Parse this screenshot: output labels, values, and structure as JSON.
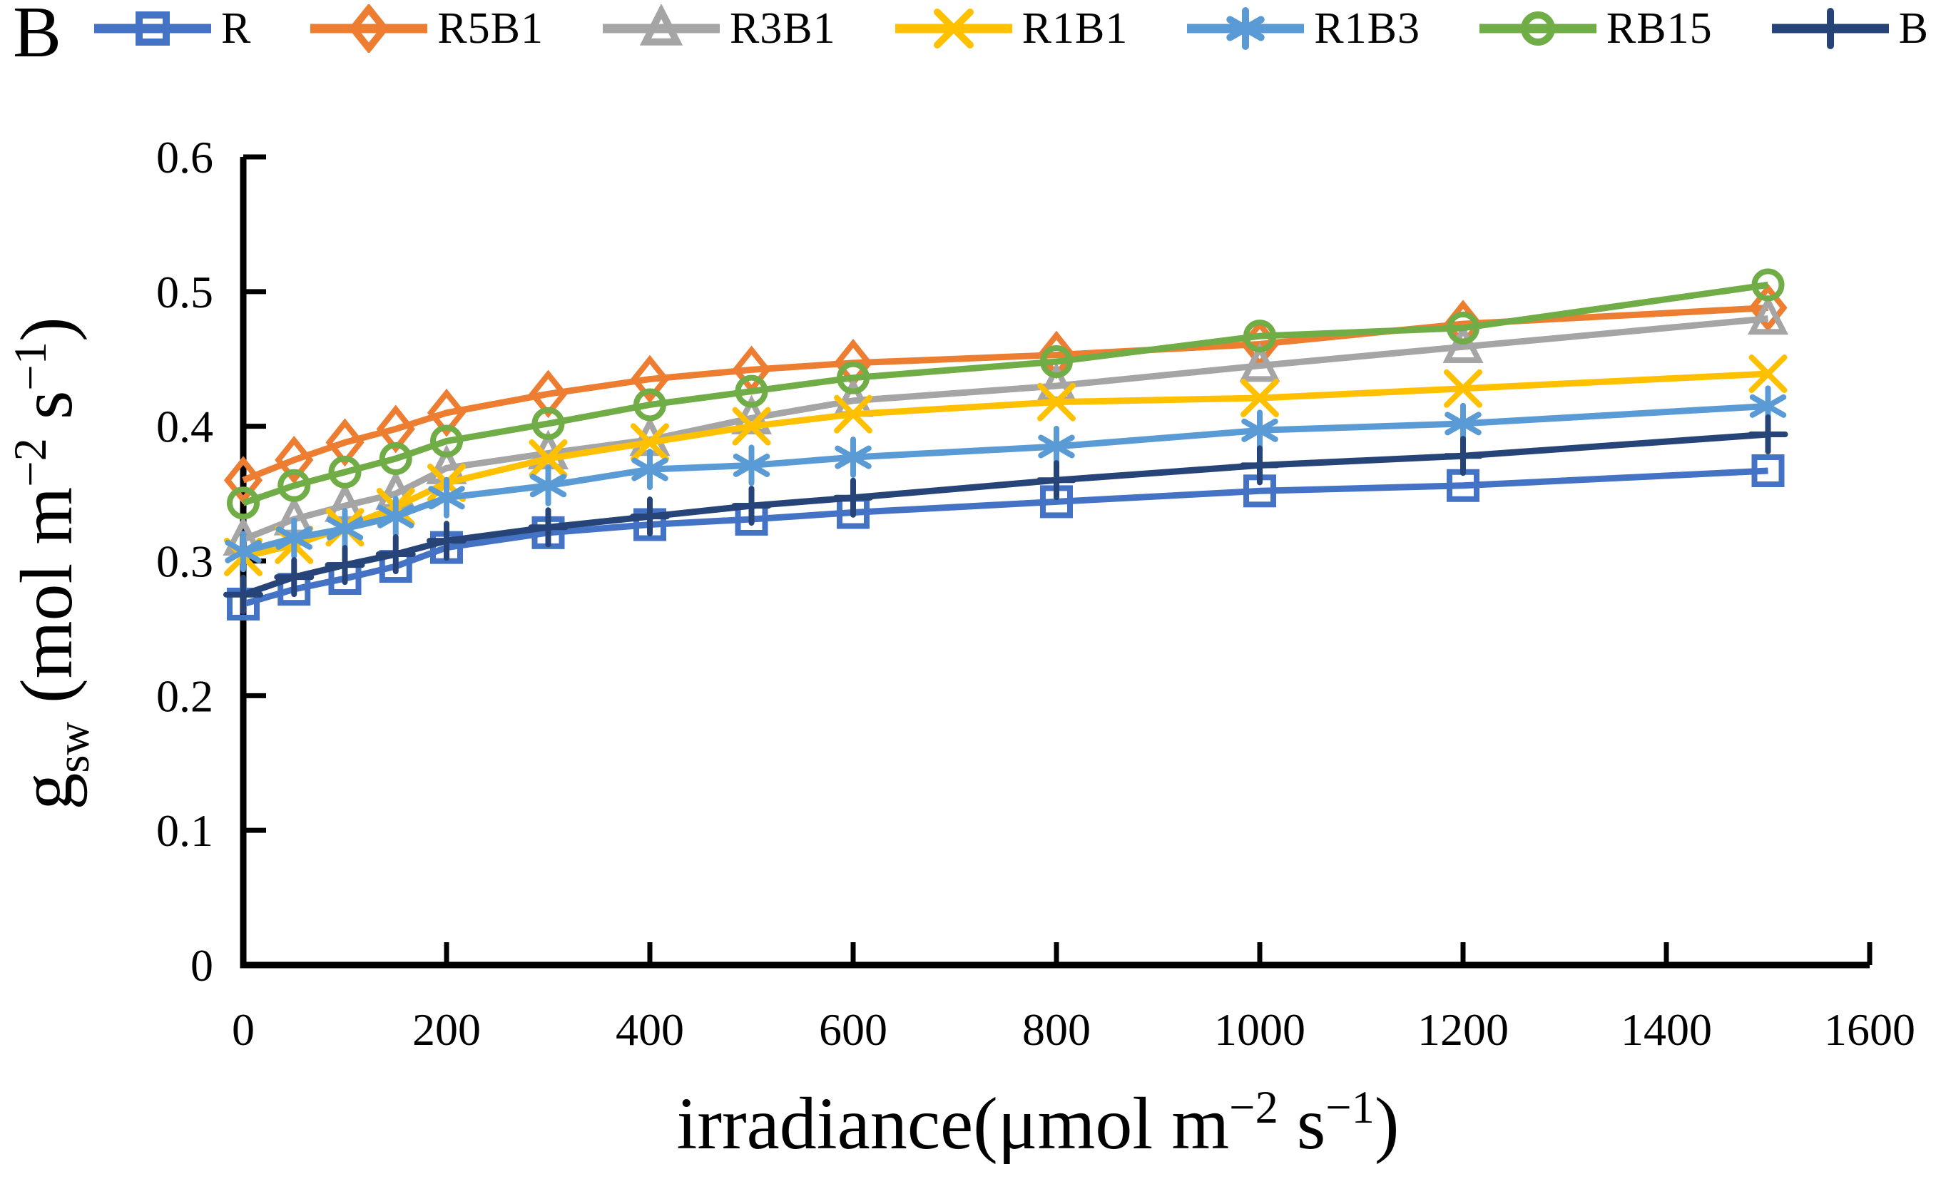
{
  "panel_label": "B",
  "chart_data": {
    "type": "line",
    "title": "",
    "xlabel": "irradiance(μmol  m⁻² s⁻¹)",
    "ylabel": "gsw (mol m⁻² s⁻¹)",
    "xlabel_parts": [
      {
        "t": "irradiance(μmol  m"
      },
      {
        "t": "−2",
        "sup": true
      },
      {
        "t": " s",
        "norm": true
      },
      {
        "t": "−1",
        "sup": true
      },
      {
        "t": ")",
        "norm": true
      }
    ],
    "ylabel_parts": [
      {
        "t": "g"
      },
      {
        "t": "sw",
        "sub": true
      },
      {
        "t": " (mol m",
        "norm": true
      },
      {
        "t": "−2",
        "sup": true
      },
      {
        "t": " s",
        "norm": true
      },
      {
        "t": "−1",
        "sup": true
      },
      {
        "t": ")",
        "norm": true
      }
    ],
    "xlim": [
      0,
      1600
    ],
    "ylim": [
      0,
      0.6
    ],
    "x_ticks": [
      0,
      200,
      400,
      600,
      800,
      1000,
      1200,
      1400,
      1600
    ],
    "x_tick_labels": [
      "0",
      "200",
      "400",
      "600",
      "800",
      "1000",
      "1200",
      "1400",
      "1600"
    ],
    "y_ticks": [
      0,
      0.1,
      0.2,
      0.3,
      0.4,
      0.5,
      0.6
    ],
    "y_tick_labels": [
      "0",
      "0.1",
      "0.2",
      "0.3",
      "0.4",
      "0.5",
      "0.6"
    ],
    "grid": false,
    "legend_position": "top",
    "x": [
      0,
      50,
      100,
      150,
      200,
      300,
      400,
      500,
      600,
      800,
      1000,
      1200,
      1500
    ],
    "series": [
      {
        "name": "R",
        "color": "#4472C4",
        "marker": "square",
        "values": [
          0.268,
          0.279,
          0.287,
          0.296,
          0.31,
          0.321,
          0.327,
          0.331,
          0.336,
          0.344,
          0.352,
          0.356,
          0.367
        ]
      },
      {
        "name": "R5B1",
        "color": "#ED7D31",
        "marker": "diamond",
        "values": [
          0.36,
          0.375,
          0.388,
          0.398,
          0.41,
          0.424,
          0.435,
          0.442,
          0.447,
          0.453,
          0.461,
          0.476,
          0.488
        ]
      },
      {
        "name": "R3B1",
        "color": "#A5A5A5",
        "marker": "triangle",
        "values": [
          0.316,
          0.331,
          0.341,
          0.35,
          0.369,
          0.38,
          0.39,
          0.406,
          0.419,
          0.43,
          0.445,
          0.459,
          0.48
        ]
      },
      {
        "name": "R1B1",
        "color": "#FFC000",
        "marker": "x",
        "values": [
          0.303,
          0.312,
          0.325,
          0.34,
          0.358,
          0.376,
          0.388,
          0.4,
          0.409,
          0.418,
          0.421,
          0.428,
          0.439
        ]
      },
      {
        "name": "R1B3",
        "color": "#5B9BD5",
        "marker": "asterisk",
        "values": [
          0.307,
          0.317,
          0.324,
          0.333,
          0.347,
          0.356,
          0.368,
          0.371,
          0.377,
          0.385,
          0.397,
          0.402,
          0.415
        ]
      },
      {
        "name": "RB15",
        "color": "#70AD47",
        "marker": "circle",
        "values": [
          0.343,
          0.356,
          0.366,
          0.376,
          0.389,
          0.402,
          0.416,
          0.426,
          0.436,
          0.448,
          0.467,
          0.473,
          0.505
        ]
      },
      {
        "name": "B",
        "color": "#264478",
        "marker": "plus",
        "values": [
          0.275,
          0.288,
          0.297,
          0.305,
          0.315,
          0.325,
          0.333,
          0.341,
          0.347,
          0.36,
          0.371,
          0.378,
          0.394
        ]
      }
    ]
  }
}
